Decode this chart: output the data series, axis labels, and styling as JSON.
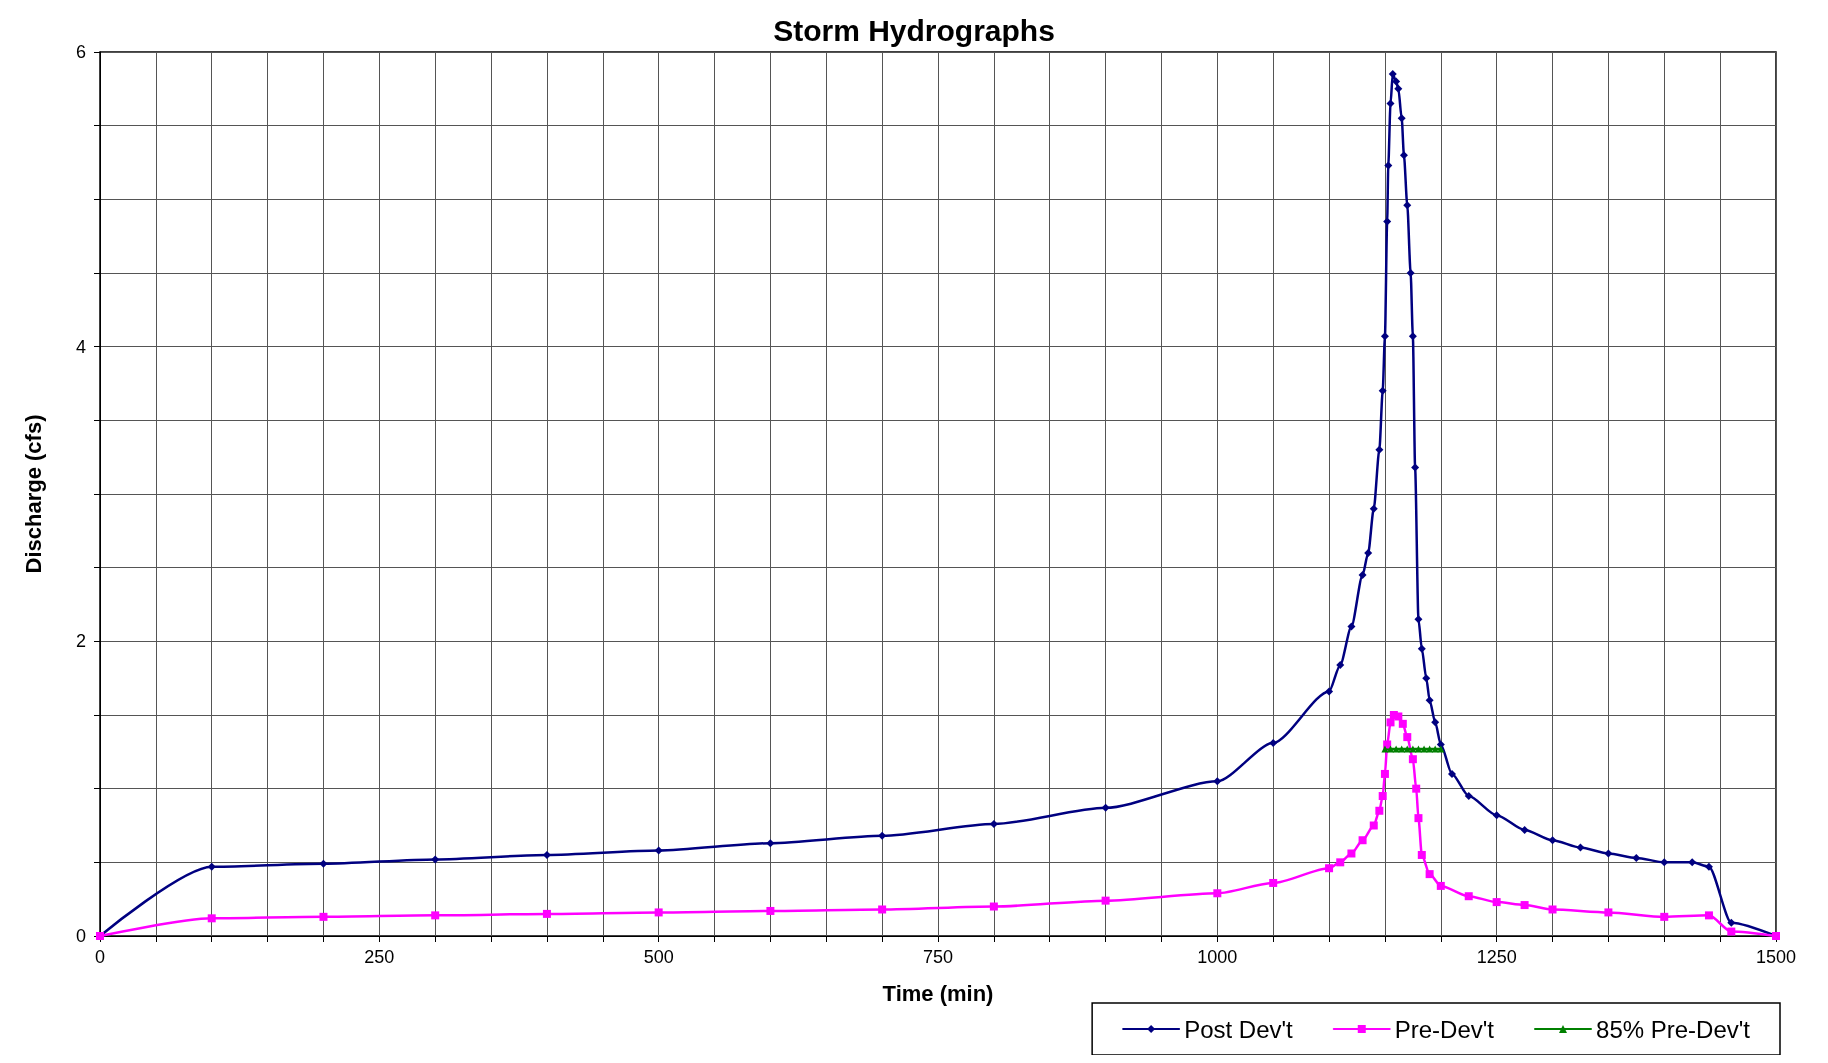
{
  "chart_data": {
    "type": "line",
    "title": "Storm Hydrographs",
    "xlabel": "Time (min)",
    "ylabel": "Discharge (cfs)",
    "xlim": [
      0,
      1500
    ],
    "ylim": [
      0,
      6
    ],
    "xticks": [
      0,
      {
        "value": 50,
        "label": null
      },
      {
        "value": 100,
        "label": null
      },
      {
        "value": 150,
        "label": null
      },
      {
        "value": 200,
        "label": null
      },
      250,
      {
        "value": 300,
        "label": null
      },
      {
        "value": 350,
        "label": null
      },
      {
        "value": 400,
        "label": null
      },
      {
        "value": 450,
        "label": null
      },
      500,
      {
        "value": 550,
        "label": null
      },
      {
        "value": 600,
        "label": null
      },
      {
        "value": 650,
        "label": null
      },
      {
        "value": 700,
        "label": null
      },
      750,
      {
        "value": 800,
        "label": null
      },
      {
        "value": 850,
        "label": null
      },
      {
        "value": 900,
        "label": null
      },
      {
        "value": 950,
        "label": null
      },
      1000,
      {
        "value": 1050,
        "label": null
      },
      {
        "value": 1100,
        "label": null
      },
      {
        "value": 1150,
        "label": null
      },
      {
        "value": 1200,
        "label": null
      },
      1250,
      {
        "value": 1300,
        "label": null
      },
      {
        "value": 1350,
        "label": null
      },
      {
        "value": 1400,
        "label": null
      },
      {
        "value": 1450,
        "label": null
      },
      1500
    ],
    "yticks": [
      0,
      {
        "value": 0.5,
        "label": null
      },
      {
        "value": 1,
        "label": null
      },
      {
        "value": 1.5,
        "label": null
      },
      2,
      {
        "value": 2.5,
        "label": null
      },
      {
        "value": 3,
        "label": null
      },
      {
        "value": 3.5,
        "label": null
      },
      4,
      {
        "value": 4.5,
        "label": null
      },
      {
        "value": 5,
        "label": null
      },
      {
        "value": 5.5,
        "label": null
      },
      6
    ],
    "grid": true,
    "legend": "bottom right",
    "line_style": "solid",
    "series": [
      {
        "name": "Post Dev't",
        "color": "#000080",
        "marker": "diamond",
        "x": [
          0,
          100,
          200,
          300,
          400,
          500,
          600,
          700,
          800,
          900,
          1000,
          1050,
          1100,
          1110,
          1120,
          1130,
          1135,
          1140,
          1145,
          1148,
          1150,
          1152,
          1153,
          1155,
          1157,
          1160,
          1162,
          1165,
          1167,
          1170,
          1173,
          1175,
          1177,
          1180,
          1183,
          1187,
          1190,
          1195,
          1200,
          1210,
          1225,
          1250,
          1275,
          1300,
          1325,
          1350,
          1375,
          1400,
          1425,
          1440,
          1460,
          1500
        ],
        "values": [
          0,
          0.47,
          0.49,
          0.52,
          0.55,
          0.58,
          0.63,
          0.68,
          0.76,
          0.87,
          1.05,
          1.31,
          1.66,
          1.84,
          2.1,
          2.45,
          2.6,
          2.9,
          3.3,
          3.7,
          4.07,
          4.85,
          5.23,
          5.65,
          5.85,
          5.8,
          5.75,
          5.55,
          5.3,
          4.96,
          4.5,
          4.07,
          3.18,
          2.15,
          1.95,
          1.75,
          1.6,
          1.45,
          1.3,
          1.1,
          0.95,
          0.82,
          0.72,
          0.65,
          0.6,
          0.56,
          0.53,
          0.5,
          0.5,
          0.47,
          0.09,
          0
        ]
      },
      {
        "name": "Pre-Dev't",
        "color": "#ff00ff",
        "marker": "square",
        "x": [
          0,
          100,
          200,
          300,
          400,
          500,
          600,
          700,
          800,
          900,
          1000,
          1050,
          1100,
          1110,
          1120,
          1130,
          1140,
          1145,
          1148,
          1150,
          1152,
          1155,
          1158,
          1162,
          1166,
          1170,
          1175,
          1178,
          1180,
          1183,
          1190,
          1200,
          1225,
          1250,
          1275,
          1300,
          1350,
          1400,
          1440,
          1460,
          1500
        ],
        "values": [
          0,
          0.12,
          0.13,
          0.14,
          0.15,
          0.16,
          0.17,
          0.18,
          0.2,
          0.24,
          0.29,
          0.36,
          0.46,
          0.5,
          0.56,
          0.65,
          0.75,
          0.85,
          0.95,
          1.1,
          1.3,
          1.45,
          1.5,
          1.49,
          1.44,
          1.35,
          1.2,
          1.0,
          0.8,
          0.55,
          0.42,
          0.34,
          0.27,
          0.23,
          0.21,
          0.18,
          0.16,
          0.13,
          0.14,
          0.03,
          0
        ]
      },
      {
        "name": "85% Pre-Dev't",
        "color": "#008000",
        "marker": "triangle",
        "x": [
          1150,
          1155,
          1160,
          1165,
          1170,
          1175,
          1180,
          1185,
          1190,
          1195,
          1200
        ],
        "values": [
          1.27,
          1.27,
          1.27,
          1.27,
          1.27,
          1.27,
          1.27,
          1.27,
          1.27,
          1.27,
          1.27
        ]
      }
    ]
  }
}
